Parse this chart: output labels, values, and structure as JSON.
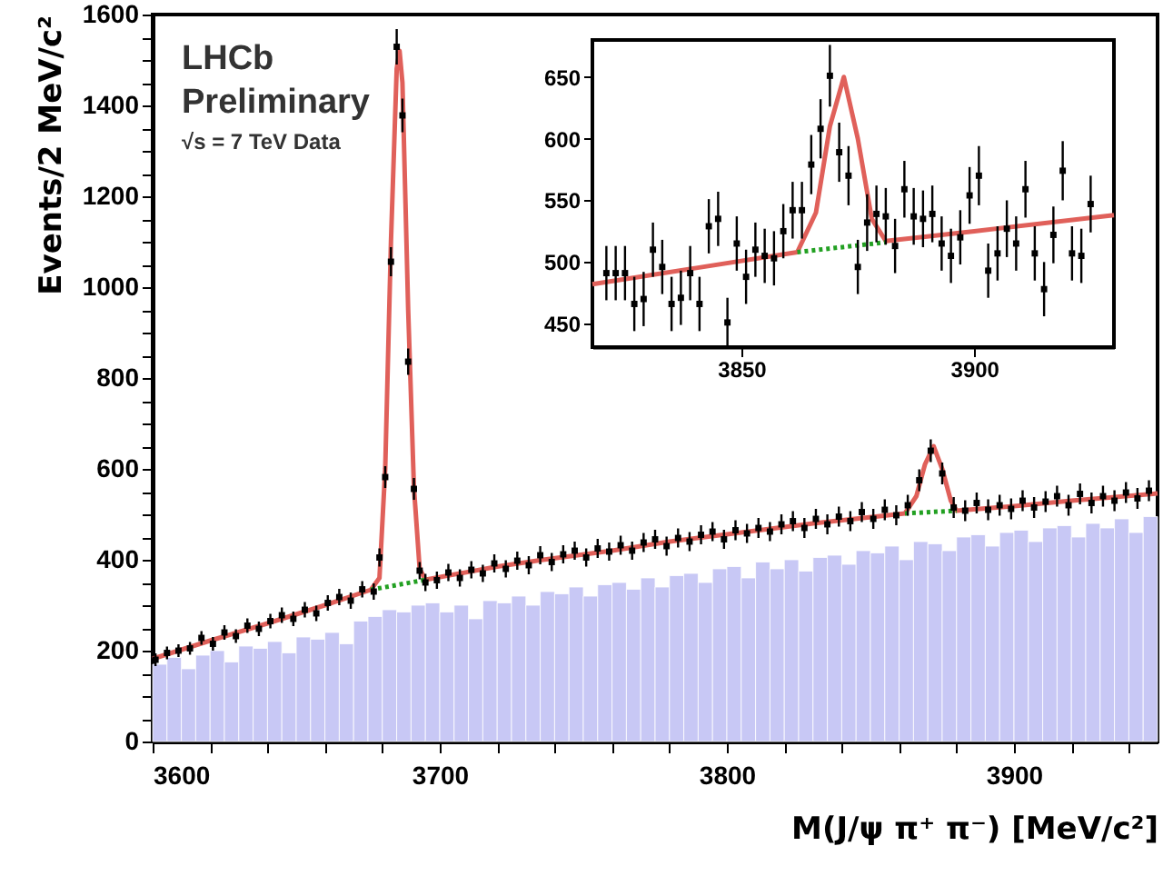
{
  "chart_data": [
    {
      "type": "scatter",
      "xlabel": "M(J/ψ π⁺ π⁻) [MeV/c²]",
      "ylabel": "Events/2 MeV/c²",
      "grid": false,
      "annotations": [
        "LHCb",
        "Preliminary",
        "√s = 7 TeV Data"
      ],
      "xlim": [
        3600,
        3950
      ],
      "ylim": [
        0,
        1600
      ],
      "xticks": [
        3600,
        {
          "value": 3620,
          "label": null
        },
        {
          "value": 3640,
          "label": null
        },
        {
          "value": 3660,
          "label": null
        },
        {
          "value": 3680,
          "label": null
        },
        3700,
        {
          "value": 3720,
          "label": null
        },
        {
          "value": 3740,
          "label": null
        },
        {
          "value": 3760,
          "label": null
        },
        {
          "value": 3780,
          "label": null
        },
        3800,
        {
          "value": 3820,
          "label": null
        },
        {
          "value": 3840,
          "label": null
        },
        {
          "value": 3860,
          "label": null
        },
        {
          "value": 3880,
          "label": null
        },
        3900,
        {
          "value": 3920,
          "label": null
        },
        {
          "value": 3940,
          "label": null
        }
      ],
      "yticks": [
        0,
        {
          "value": 50,
          "label": null
        },
        {
          "value": 100,
          "label": null
        },
        {
          "value": 150,
          "label": null
        },
        200,
        {
          "value": 250,
          "label": null
        },
        {
          "value": 300,
          "label": null
        },
        {
          "value": 350,
          "label": null
        },
        400,
        {
          "value": 450,
          "label": null
        },
        {
          "value": 500,
          "label": null
        },
        {
          "value": 550,
          "label": null
        },
        600,
        {
          "value": 650,
          "label": null
        },
        {
          "value": 700,
          "label": null
        },
        {
          "value": 750,
          "label": null
        },
        800,
        {
          "value": 850,
          "label": null
        },
        {
          "value": 900,
          "label": null
        },
        {
          "value": 950,
          "label": null
        },
        1000,
        {
          "value": 1050,
          "label": null
        },
        {
          "value": 1100,
          "label": null
        },
        {
          "value": 1150,
          "label": null
        },
        1200,
        {
          "value": 1250,
          "label": null
        },
        {
          "value": 1300,
          "label": null
        },
        {
          "value": 1350,
          "label": null
        },
        1400,
        {
          "value": 1450,
          "label": null
        },
        {
          "value": 1500,
          "label": null
        },
        {
          "value": 1550,
          "label": null
        },
        1600
      ],
      "series": [
        {
          "type": "histogram",
          "color": "#c8c8f5",
          "bins": [
            3600,
            3605,
            3610,
            3615,
            3620,
            3625,
            3630,
            3635,
            3640,
            3645,
            3650,
            3655,
            3660,
            3665,
            3670,
            3675,
            3680,
            3685,
            3690,
            3695,
            3700,
            3705,
            3710,
            3715,
            3720,
            3725,
            3730,
            3735,
            3740,
            3745,
            3750,
            3755,
            3760,
            3765,
            3770,
            3775,
            3780,
            3785,
            3790,
            3795,
            3800,
            3805,
            3810,
            3815,
            3820,
            3825,
            3830,
            3835,
            3840,
            3845,
            3850,
            3855,
            3860,
            3865,
            3870,
            3875,
            3880,
            3885,
            3890,
            3895,
            3900,
            3905,
            3910,
            3915,
            3920,
            3925,
            3930,
            3935,
            3940,
            3945,
            3950
          ],
          "values": [
            170,
            185,
            160,
            190,
            200,
            175,
            210,
            205,
            220,
            195,
            230,
            225,
            240,
            215,
            265,
            275,
            290,
            285,
            300,
            305,
            285,
            300,
            270,
            310,
            305,
            320,
            300,
            330,
            325,
            340,
            320,
            345,
            350,
            335,
            360,
            340,
            365,
            370,
            350,
            380,
            385,
            360,
            395,
            380,
            400,
            375,
            405,
            410,
            390,
            420,
            415,
            430,
            400,
            440,
            435,
            420,
            450,
            455,
            430,
            460,
            465,
            440,
            470,
            475,
            450,
            480,
            470,
            490,
            460,
            495
          ]
        },
        {
          "color": "#000000",
          "marker": "square",
          "x": [
            3601,
            3605,
            3609,
            3613,
            3617,
            3621,
            3625,
            3629,
            3633,
            3637,
            3641,
            3645,
            3649,
            3653,
            3657,
            3661,
            3665,
            3669,
            3673,
            3677,
            3679,
            3681,
            3683,
            3685,
            3687,
            3689,
            3691,
            3693,
            3695,
            3699,
            3703,
            3707,
            3711,
            3715,
            3719,
            3723,
            3727,
            3731,
            3735,
            3739,
            3743,
            3747,
            3751,
            3755,
            3759,
            3763,
            3767,
            3771,
            3775,
            3779,
            3783,
            3787,
            3791,
            3795,
            3799,
            3803,
            3807,
            3811,
            3815,
            3819,
            3823,
            3827,
            3831,
            3835,
            3839,
            3843,
            3847,
            3851,
            3855,
            3859,
            3863,
            3867,
            3871,
            3875,
            3879,
            3883,
            3887,
            3891,
            3895,
            3899,
            3903,
            3907,
            3911,
            3915,
            3919,
            3923,
            3927,
            3931,
            3935,
            3939,
            3943,
            3947
          ],
          "values": [
            180,
            195,
            200,
            205,
            228,
            215,
            240,
            232,
            255,
            248,
            265,
            278,
            270,
            290,
            282,
            305,
            318,
            310,
            335,
            330,
            405,
            582,
            1056,
            1529,
            1378,
            836,
            556,
            376,
            350,
            355,
            372,
            360,
            378,
            370,
            392,
            380,
            398,
            388,
            410,
            395,
            412,
            420,
            405,
            425,
            418,
            432,
            420,
            438,
            445,
            430,
            448,
            440,
            455,
            462,
            445,
            465,
            458,
            470,
            462,
            478,
            485,
            470,
            490,
            478,
            495,
            485,
            505,
            490,
            510,
            498,
            520,
            575,
            640,
            590,
            515,
            508,
            525,
            510,
            520,
            512,
            530,
            515,
            528,
            540,
            520,
            545,
            525,
            540,
            530,
            548,
            535,
            552
          ],
          "errors": [
            14,
            14,
            14,
            14,
            15,
            15,
            16,
            15,
            16,
            16,
            16,
            17,
            16,
            17,
            17,
            17,
            18,
            18,
            18,
            18,
            20,
            24,
            32,
            39,
            37,
            29,
            24,
            19,
            19,
            19,
            19,
            19,
            19,
            19,
            20,
            19,
            20,
            20,
            20,
            20,
            20,
            20,
            20,
            21,
            20,
            21,
            20,
            21,
            21,
            21,
            21,
            21,
            21,
            21,
            21,
            22,
            21,
            22,
            21,
            22,
            22,
            22,
            22,
            22,
            22,
            22,
            22,
            22,
            23,
            22,
            23,
            24,
            25,
            24,
            23,
            23,
            23,
            23,
            23,
            23,
            23,
            23,
            23,
            23,
            23,
            23,
            23,
            23,
            23,
            23,
            23,
            23
          ]
        },
        {
          "type": "line",
          "color": "#e0605a",
          "line_style": "solid",
          "x": [
            3600,
            3620,
            3640,
            3660,
            3676,
            3679,
            3681,
            3683,
            3685,
            3686,
            3687,
            3689,
            3691,
            3693,
            3695,
            3720,
            3736,
            3760,
            3780,
            3800,
            3830,
            3862,
            3866,
            3869,
            3872,
            3875,
            3878,
            3880,
            3900,
            3920,
            3950
          ],
          "values": [
            182,
            222,
            260,
            300,
            334,
            360,
            600,
            1100,
            1480,
            1520,
            1450,
            950,
            560,
            380,
            356,
            385,
            400,
            420,
            440,
            456,
            480,
            502,
            540,
            610,
            650,
            600,
            530,
            508,
            518,
            530,
            546
          ]
        },
        {
          "type": "line",
          "color": "#22a022",
          "line_style": "dotted",
          "x": [
            3676,
            3696
          ],
          "values": [
            334,
            357
          ]
        },
        {
          "type": "line",
          "color": "#22a022",
          "line_style": "dotted",
          "x": [
            3862,
            3880
          ],
          "values": [
            502,
            508
          ]
        }
      ]
    },
    {
      "type": "scatter",
      "grid": false,
      "xlim": [
        3818,
        3930
      ],
      "ylim": [
        431,
        680
      ],
      "xticks": [
        3850,
        3900
      ],
      "yticks": [
        450,
        500,
        550,
        600,
        650
      ],
      "series": [
        {
          "color": "#000000",
          "marker": "square",
          "x": [
            3821,
            3823,
            3825,
            3827,
            3829,
            3831,
            3833,
            3835,
            3837,
            3839,
            3841,
            3843,
            3845,
            3847,
            3849,
            3851,
            3853,
            3855,
            3857,
            3859,
            3861,
            3863,
            3865,
            3867,
            3869,
            3871,
            3873,
            3875,
            3877,
            3879,
            3881,
            3883,
            3885,
            3887,
            3889,
            3891,
            3893,
            3895,
            3897,
            3899,
            3901,
            3903,
            3905,
            3907,
            3909,
            3911,
            3913,
            3915,
            3917,
            3919,
            3921,
            3923,
            3925
          ],
          "values": [
            491,
            491,
            491,
            466,
            470,
            510,
            496,
            466,
            471,
            491,
            466,
            529,
            535,
            451,
            515,
            488,
            510,
            505,
            503,
            525,
            542,
            542,
            579,
            608,
            651,
            589,
            570,
            496,
            532,
            539,
            537,
            513,
            559,
            537,
            535,
            539,
            515,
            505,
            520,
            554,
            570,
            493,
            507,
            527,
            515,
            559,
            507,
            478,
            522,
            574,
            507,
            505,
            547
          ],
          "errors": [
            22,
            22,
            22,
            22,
            22,
            22,
            22,
            22,
            22,
            22,
            22,
            22,
            22,
            20,
            22,
            22,
            22,
            22,
            22,
            22,
            23,
            23,
            24,
            24,
            25,
            24,
            24,
            22,
            23,
            23,
            23,
            22,
            23,
            23,
            23,
            23,
            22,
            22,
            22,
            23,
            24,
            22,
            22,
            23,
            22,
            23,
            22,
            22,
            23,
            24,
            22,
            22,
            23
          ]
        },
        {
          "type": "line",
          "color": "#e0605a",
          "line_style": "solid",
          "x": [
            3818,
            3840,
            3862,
            3866,
            3869,
            3872,
            3875,
            3878,
            3881,
            3900,
            3930
          ],
          "values": [
            482,
            495,
            508,
            540,
            610,
            650,
            600,
            535,
            517,
            525,
            538
          ]
        },
        {
          "type": "line",
          "color": "#22a022",
          "line_style": "dotted",
          "x": [
            3862,
            3881
          ],
          "values": [
            508,
            516
          ]
        }
      ]
    }
  ]
}
